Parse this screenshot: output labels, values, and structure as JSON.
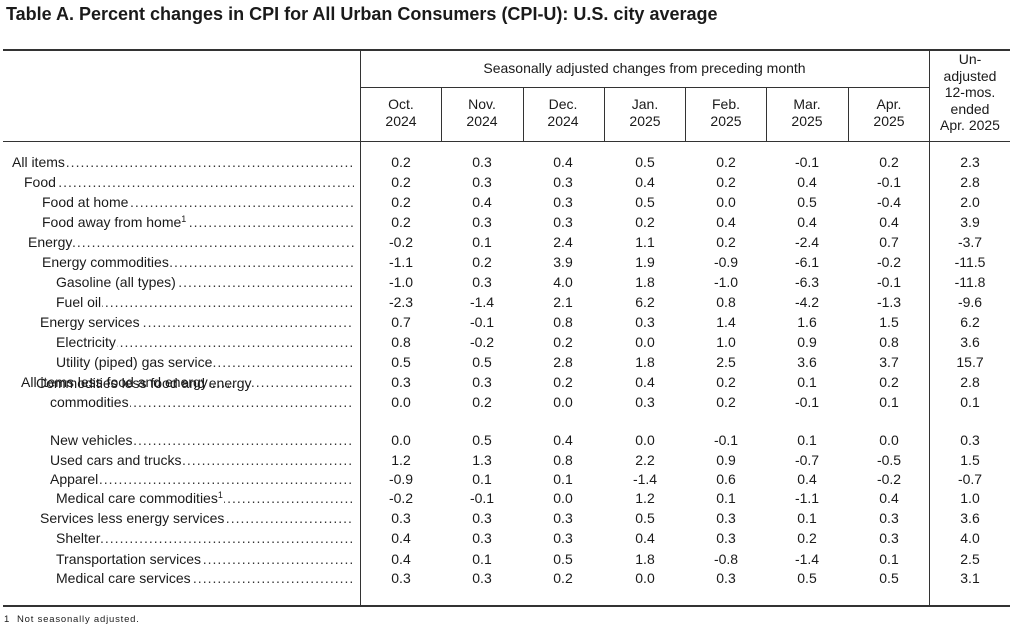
{
  "title": "Table A. Percent changes in CPI for All Urban Consumers (CPI-U): U.S. city average",
  "header": {
    "seasonally_adjusted_label": "Seasonally adjusted changes from preceding month",
    "months": [
      {
        "month": "Oct.",
        "year": "2024"
      },
      {
        "month": "Nov.",
        "year": "2024"
      },
      {
        "month": "Dec.",
        "year": "2024"
      },
      {
        "month": "Jan.",
        "year": "2025"
      },
      {
        "month": "Feb.",
        "year": "2025"
      },
      {
        "month": "Mar.",
        "year": "2025"
      },
      {
        "month": "Apr.",
        "year": "2025"
      }
    ],
    "unadjusted_lines": [
      "Un-",
      "adjusted",
      "12-mos.",
      "ended",
      "Apr. 2025"
    ]
  },
  "rows": [
    {
      "label": "All items",
      "values": [
        "0.2",
        "0.3",
        "0.4",
        "0.5",
        "0.2",
        "-0.1",
        "0.2",
        "2.3"
      ]
    },
    {
      "label": "Food",
      "values": [
        "0.2",
        "0.3",
        "0.3",
        "0.4",
        "0.2",
        "0.4",
        "-0.1",
        "2.8"
      ]
    },
    {
      "label": "Food at home",
      "values": [
        "0.2",
        "0.4",
        "0.3",
        "0.5",
        "0.0",
        "0.5",
        "-0.4",
        "2.0"
      ]
    },
    {
      "label": "Food away from home",
      "footnote_mark": "1",
      "values": [
        "0.2",
        "0.3",
        "0.3",
        "0.2",
        "0.4",
        "0.4",
        "0.4",
        "3.9"
      ]
    },
    {
      "label": "Energy",
      "values": [
        "-0.2",
        "0.1",
        "2.4",
        "1.1",
        "0.2",
        "-2.4",
        "0.7",
        "-3.7"
      ]
    },
    {
      "label": "Energy commodities",
      "values": [
        "-1.1",
        "0.2",
        "3.9",
        "1.9",
        "-0.9",
        "-6.1",
        "-0.2",
        "-11.5"
      ]
    },
    {
      "label": "Gasoline (all types)",
      "values": [
        "-1.0",
        "0.3",
        "4.0",
        "1.8",
        "-1.0",
        "-6.3",
        "-0.1",
        "-11.8"
      ]
    },
    {
      "label": "Fuel oil",
      "values": [
        "-2.3",
        "-1.4",
        "2.1",
        "6.2",
        "0.8",
        "-4.2",
        "-1.3",
        "-9.6"
      ]
    },
    {
      "label": "Energy services",
      "values": [
        "0.7",
        "-0.1",
        "0.8",
        "0.3",
        "1.4",
        "1.6",
        "1.5",
        "6.2"
      ]
    },
    {
      "label": "Electricity",
      "values": [
        "0.8",
        "-0.2",
        "0.2",
        "0.0",
        "1.0",
        "0.9",
        "0.8",
        "3.6"
      ]
    },
    {
      "label": "Utility (piped) gas service",
      "values": [
        "0.5",
        "0.5",
        "2.8",
        "1.8",
        "2.5",
        "3.6",
        "3.7",
        "15.7"
      ]
    },
    {
      "label": "All items less food and energy",
      "values": [
        "0.3",
        "0.3",
        "0.2",
        "0.4",
        "0.2",
        "0.1",
        "0.2",
        "2.8"
      ]
    },
    {
      "label": "Commodities less food and energy",
      "label2": "commodities",
      "values": [
        "0.0",
        "0.2",
        "0.0",
        "0.3",
        "0.2",
        "-0.1",
        "0.1",
        "0.1"
      ]
    },
    {
      "label": "New vehicles",
      "values": [
        "0.0",
        "0.5",
        "0.4",
        "0.0",
        "-0.1",
        "0.1",
        "0.0",
        "0.3"
      ]
    },
    {
      "label": "Used cars and trucks",
      "values": [
        "1.2",
        "1.3",
        "0.8",
        "2.2",
        "0.9",
        "-0.7",
        "-0.5",
        "1.5"
      ]
    },
    {
      "label": "Apparel",
      "values": [
        "-0.9",
        "0.1",
        "0.1",
        "-1.4",
        "0.6",
        "0.4",
        "-0.2",
        "-0.7"
      ]
    },
    {
      "label": "Medical care commodities",
      "footnote_mark": "1",
      "values": [
        "-0.2",
        "-0.1",
        "0.0",
        "1.2",
        "0.1",
        "-1.1",
        "0.4",
        "1.0"
      ]
    },
    {
      "label": "Services less energy services",
      "values": [
        "0.3",
        "0.3",
        "0.3",
        "0.5",
        "0.3",
        "0.1",
        "0.3",
        "3.6"
      ]
    },
    {
      "label": "Shelter",
      "values": [
        "0.4",
        "0.3",
        "0.3",
        "0.4",
        "0.3",
        "0.2",
        "0.3",
        "4.0"
      ]
    },
    {
      "label": "Transportation services",
      "values": [
        "0.4",
        "0.1",
        "0.5",
        "1.8",
        "-0.8",
        "-1.4",
        "0.1",
        "2.5"
      ]
    },
    {
      "label": "Medical care services",
      "values": [
        "0.3",
        "0.3",
        "0.2",
        "0.0",
        "0.3",
        "0.5",
        "0.5",
        "3.1"
      ]
    }
  ],
  "footnote": {
    "mark": "1",
    "text": "Not seasonally adjusted."
  }
}
